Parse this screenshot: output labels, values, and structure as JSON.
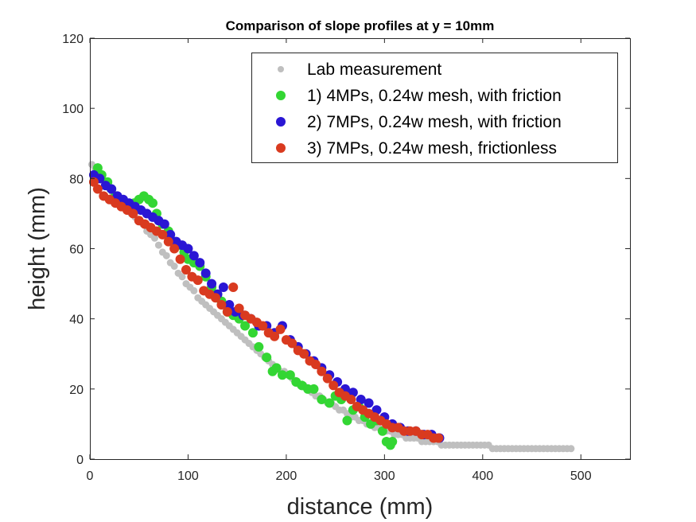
{
  "chart_data": {
    "type": "scatter",
    "title": "Comparison of slope profiles at y = 10mm",
    "xlabel": "distance (mm)",
    "ylabel": "height (mm)",
    "xlim": [
      0,
      550
    ],
    "ylim": [
      0,
      120
    ],
    "xticks": [
      0,
      100,
      200,
      300,
      400,
      500
    ],
    "yticks": [
      0,
      20,
      40,
      60,
      80,
      100,
      120
    ],
    "xtick_labels": [
      "0",
      "100",
      "200",
      "300",
      "400",
      "500"
    ],
    "ytick_labels": [
      "0",
      "20",
      "40",
      "60",
      "80",
      "100",
      "120"
    ],
    "legend_position": "top-right",
    "grid": false,
    "series": [
      {
        "name": "Lab measurement",
        "color": "#bfbfbf",
        "marker": "small-dot",
        "x": [
          2,
          5,
          8,
          11,
          14,
          17,
          20,
          23,
          26,
          30,
          34,
          38,
          42,
          46,
          50,
          54,
          58,
          62,
          66,
          70,
          74,
          78,
          82,
          86,
          90,
          94,
          98,
          102,
          106,
          110,
          114,
          118,
          122,
          126,
          130,
          134,
          138,
          142,
          146,
          150,
          154,
          158,
          162,
          166,
          170,
          174,
          178,
          182,
          186,
          190,
          194,
          198,
          202,
          206,
          210,
          214,
          218,
          222,
          226,
          230,
          234,
          238,
          242,
          246,
          250,
          254,
          258,
          262,
          266,
          270,
          274,
          278,
          282,
          286,
          290,
          294,
          298,
          302,
          306,
          310,
          314,
          318,
          322,
          326,
          330,
          334,
          338,
          342,
          346,
          350,
          354,
          358,
          362,
          366,
          370,
          374,
          378,
          382,
          386,
          390,
          394,
          398,
          402,
          406,
          410,
          414,
          418,
          422,
          426,
          430,
          434,
          438,
          442,
          446,
          450,
          454,
          458,
          462,
          466,
          470,
          474,
          478,
          482,
          486,
          490
        ],
        "y": [
          84,
          83,
          82,
          81,
          79,
          78,
          77,
          76,
          75,
          74,
          72,
          71,
          70,
          69,
          68,
          67,
          65,
          64,
          63,
          61,
          59,
          58,
          56,
          55,
          53,
          52,
          50,
          49,
          48,
          46,
          45,
          44,
          43,
          42,
          41,
          40,
          39,
          38,
          37,
          36,
          35,
          34,
          33,
          32,
          31,
          30,
          29,
          28,
          27,
          26,
          25,
          25,
          24,
          23,
          22,
          21,
          21,
          20,
          19,
          18,
          18,
          17,
          16,
          16,
          15,
          14,
          14,
          13,
          12,
          12,
          11,
          11,
          10,
          10,
          9,
          9,
          8,
          8,
          8,
          7,
          7,
          7,
          6,
          6,
          6,
          6,
          5,
          5,
          5,
          5,
          5,
          4,
          4,
          4,
          4,
          4,
          4,
          4,
          4,
          4,
          4,
          4,
          4,
          4,
          3,
          3,
          3,
          3,
          3,
          3,
          3,
          3,
          3,
          3,
          3,
          3,
          3,
          3,
          3,
          3,
          3,
          3,
          3,
          3,
          3
        ]
      },
      {
        "name": "1) 4MPs, 0.24w mesh, with friction",
        "color": "#33d633",
        "marker": "dot",
        "x": [
          8,
          12,
          18,
          22,
          26,
          32,
          38,
          45,
          50,
          55,
          60,
          64,
          68,
          74,
          80,
          86,
          90,
          96,
          100,
          106,
          112,
          118,
          124,
          130,
          134,
          140,
          146,
          152,
          158,
          166,
          172,
          180,
          186,
          190,
          196,
          204,
          210,
          216,
          222,
          228,
          236,
          244,
          250,
          256,
          262,
          268,
          274,
          280,
          286,
          292,
          298,
          302,
          306,
          308
        ],
        "y": [
          83,
          81,
          79,
          77,
          75,
          73,
          72,
          73,
          74,
          75,
          74,
          73,
          70,
          67,
          65,
          62,
          61,
          59,
          57,
          56,
          55,
          52,
          49,
          47,
          45,
          42,
          41,
          40,
          38,
          36,
          32,
          29,
          25,
          26,
          24,
          24,
          22,
          21,
          20,
          20,
          17,
          16,
          18,
          17,
          11,
          14,
          15,
          12,
          10,
          11,
          8,
          5,
          4,
          5
        ]
      },
      {
        "name": "2) 7MPs, 0.24w mesh, with friction",
        "color": "#2a16d4",
        "marker": "dot",
        "x": [
          4,
          10,
          16,
          22,
          28,
          34,
          40,
          46,
          52,
          58,
          64,
          70,
          76,
          82,
          88,
          94,
          100,
          106,
          112,
          118,
          124,
          130,
          136,
          142,
          148,
          156,
          164,
          172,
          180,
          188,
          196,
          204,
          212,
          220,
          228,
          236,
          244,
          252,
          260,
          268,
          276,
          284,
          292,
          300,
          308,
          316,
          324,
          332,
          340,
          348,
          356
        ],
        "y": [
          81,
          80,
          78,
          77,
          75,
          74,
          73,
          72,
          71,
          70,
          69,
          68,
          67,
          64,
          62,
          61,
          60,
          58,
          56,
          53,
          50,
          47,
          49,
          44,
          42,
          41,
          40,
          38,
          38,
          36,
          38,
          34,
          32,
          30,
          28,
          26,
          24,
          22,
          20,
          19,
          17,
          16,
          14,
          12,
          10,
          9,
          8,
          8,
          7,
          7,
          6
        ]
      },
      {
        "name": "3) 7MPs, 0.24w mesh, frictionless",
        "color": "#d93a1f",
        "marker": "dot",
        "x": [
          4,
          8,
          14,
          20,
          26,
          32,
          38,
          44,
          50,
          56,
          62,
          68,
          74,
          80,
          86,
          92,
          98,
          104,
          110,
          116,
          122,
          128,
          134,
          140,
          146,
          152,
          158,
          164,
          170,
          176,
          182,
          188,
          194,
          200,
          206,
          212,
          218,
          224,
          230,
          236,
          242,
          248,
          254,
          260,
          266,
          272,
          278,
          284,
          290,
          296,
          302,
          308,
          314,
          320,
          326,
          332,
          338,
          344,
          350,
          355
        ],
        "y": [
          79,
          77,
          75,
          74,
          73,
          72,
          71,
          70,
          68,
          67,
          66,
          65,
          64,
          62,
          60,
          57,
          54,
          52,
          51,
          48,
          47,
          46,
          44,
          42,
          49,
          43,
          41,
          40,
          39,
          38,
          36,
          35,
          37,
          34,
          33,
          31,
          30,
          28,
          27,
          25,
          23,
          21,
          19,
          18,
          17,
          15,
          14,
          13,
          12,
          11,
          10,
          9,
          9,
          8,
          8,
          8,
          7,
          7,
          6,
          6
        ]
      }
    ]
  }
}
